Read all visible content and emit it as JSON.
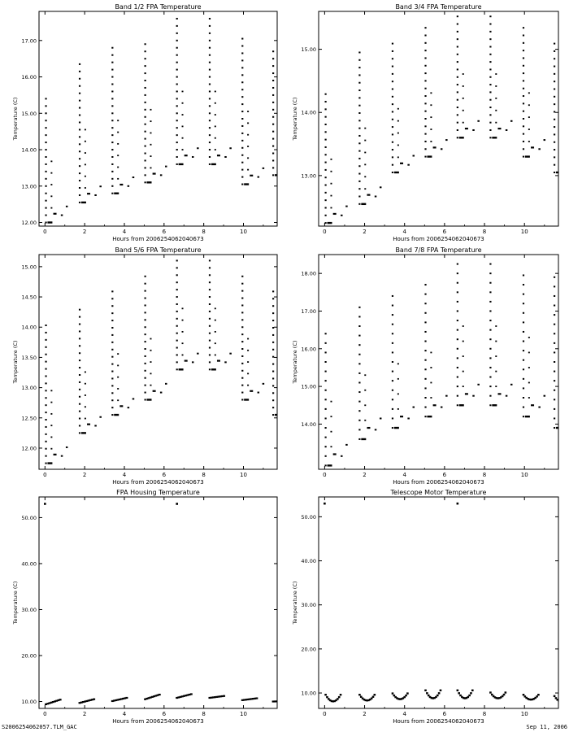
{
  "footer": {
    "left": "S2006254062057.TLM_GAC",
    "right": "Sep 11, 2006"
  },
  "colors": {
    "ink": "#000000",
    "background": "#ffffff"
  },
  "chart_data": [
    {
      "type": "scatter",
      "title": "Band 1/2 FPA Temperature",
      "xlabel": "Hours from 2006254062040673",
      "ylabel": "Temperature (C)",
      "xlim": [
        -0.3,
        11.7
      ],
      "ylim": [
        11.9,
        17.8
      ],
      "xticks": [
        0,
        2,
        4,
        6,
        8,
        10
      ],
      "xtick_labels": [
        "0",
        "2",
        "4",
        "6",
        "8",
        "10"
      ],
      "yticks": [
        12,
        13,
        14,
        15,
        16,
        17
      ],
      "ytick_labels": [
        "12.00",
        "13.00",
        "14.00",
        "15.00",
        "16.00",
        "17.00"
      ],
      "profile": {
        "kind": "fpa",
        "base": [
          12.0,
          12.55,
          12.8,
          13.1,
          13.6,
          13.6,
          13.05,
          13.3
        ],
        "peak": [
          15.5,
          16.5,
          16.8,
          17.05,
          17.6,
          17.6,
          17.05,
          16.8
        ],
        "step": 0.2
      }
    },
    {
      "type": "scatter",
      "title": "Band 3/4 FPA Temperature",
      "xlabel": "Hours from 2006254062040673",
      "ylabel": "Temperature (C)",
      "xlim": [
        -0.3,
        11.7
      ],
      "ylim": [
        12.2,
        15.6
      ],
      "xticks": [
        0,
        2,
        4,
        6,
        8,
        10
      ],
      "xtick_labels": [
        "0",
        "2",
        "4",
        "6",
        "8",
        "10"
      ],
      "yticks": [
        13,
        14,
        15
      ],
      "ytick_labels": [
        "13.00",
        "14.00",
        "15.00"
      ],
      "profile": {
        "kind": "fpa",
        "base": [
          12.25,
          12.55,
          13.05,
          13.3,
          13.6,
          13.6,
          13.3,
          13.05
        ],
        "peak": [
          14.4,
          14.95,
          15.2,
          15.45,
          15.6,
          15.6,
          15.45,
          15.2
        ],
        "step": 0.12
      }
    },
    {
      "type": "scatter",
      "title": "Band 5/6 FPA Temperature",
      "xlabel": "Hours from 2006254062040673",
      "ylabel": "Temperature (C)",
      "xlim": [
        -0.3,
        11.7
      ],
      "ylim": [
        11.65,
        15.2
      ],
      "xticks": [
        0,
        2,
        4,
        6,
        8,
        10
      ],
      "xtick_labels": [
        "0",
        "2",
        "4",
        "6",
        "8",
        "10"
      ],
      "yticks": [
        12,
        12.5,
        13,
        13.5,
        14,
        14.5,
        15
      ],
      "ytick_labels": [
        "12.00",
        "12.50",
        "13.00",
        "13.50",
        "14.00",
        "14.50",
        "15.00"
      ],
      "profile": {
        "kind": "fpa",
        "base": [
          11.75,
          12.25,
          12.55,
          12.8,
          13.3,
          13.3,
          12.8,
          12.55
        ],
        "peak": [
          14.05,
          14.4,
          14.65,
          14.95,
          15.2,
          15.2,
          14.95,
          14.65
        ],
        "step": 0.12
      }
    },
    {
      "type": "scatter",
      "title": "Band 7/8 FPA Temperature",
      "xlabel": "Hours from 2006254062040673",
      "ylabel": "Temperature (C)",
      "xlim": [
        -0.3,
        11.7
      ],
      "ylim": [
        12.8,
        18.5
      ],
      "xticks": [
        0,
        2,
        4,
        6,
        8,
        10
      ],
      "xtick_labels": [
        "0",
        "2",
        "4",
        "6",
        "8",
        "10"
      ],
      "yticks": [
        14,
        15,
        16,
        17,
        18
      ],
      "ytick_labels": [
        "14.00",
        "15.00",
        "16.00",
        "17.00",
        "18.00"
      ],
      "profile": {
        "kind": "fpa",
        "base": [
          12.9,
          13.6,
          13.9,
          14.2,
          14.5,
          14.5,
          14.2,
          13.9
        ],
        "peak": [
          16.6,
          17.3,
          17.6,
          17.9,
          18.4,
          18.4,
          18.1,
          17.9
        ],
        "step": 0.25
      }
    },
    {
      "type": "scatter",
      "title": "FPA Housing Temperature",
      "xlabel": "Hours from 2006254062040673",
      "ylabel": "Temperature (C)",
      "xlim": [
        -0.3,
        11.7
      ],
      "ylim": [
        8.5,
        54.5
      ],
      "xticks": [
        0,
        2,
        4,
        6,
        8,
        10
      ],
      "xtick_labels": [
        "0",
        "2",
        "4",
        "6",
        "8",
        "10"
      ],
      "yticks": [
        10,
        20,
        30,
        40,
        50
      ],
      "ytick_labels": [
        "10.00",
        "20.00",
        "30.00",
        "40.00",
        "50.00"
      ],
      "profile": {
        "kind": "housing",
        "seg_start": [
          9.4,
          9.7,
          10.1,
          10.5,
          10.8,
          10.8,
          10.3,
          10.0
        ],
        "seg_end": [
          10.4,
          10.5,
          10.8,
          11.5,
          11.6,
          11.2,
          10.7,
          10.1
        ],
        "spikes": [
          [
            0.0,
            53.0
          ],
          [
            6.65,
            53.0
          ]
        ]
      }
    },
    {
      "type": "scatter",
      "title": "Telescope Motor Temperature",
      "xlabel": "Hours from 2006254062040673",
      "ylabel": "Temperature (C)",
      "xlim": [
        -0.3,
        11.7
      ],
      "ylim": [
        6.5,
        54.5
      ],
      "xticks": [
        0,
        2,
        4,
        6,
        8,
        10
      ],
      "xtick_labels": [
        "0",
        "2",
        "4",
        "6",
        "8",
        "10"
      ],
      "yticks": [
        10,
        20,
        30,
        40,
        50
      ],
      "ytick_labels": [
        "10.00",
        "20.00",
        "30.00",
        "40.00",
        "50.00"
      ],
      "profile": {
        "kind": "motor",
        "dip_low": [
          8.1,
          8.3,
          8.6,
          8.8,
          8.8,
          8.8,
          8.5,
          8.0
        ],
        "dip_high": [
          9.6,
          9.6,
          9.9,
          10.6,
          10.6,
          10.1,
          9.6,
          9.3
        ],
        "spikes": [
          [
            0.0,
            53.0
          ],
          [
            6.65,
            53.0
          ]
        ]
      }
    }
  ]
}
